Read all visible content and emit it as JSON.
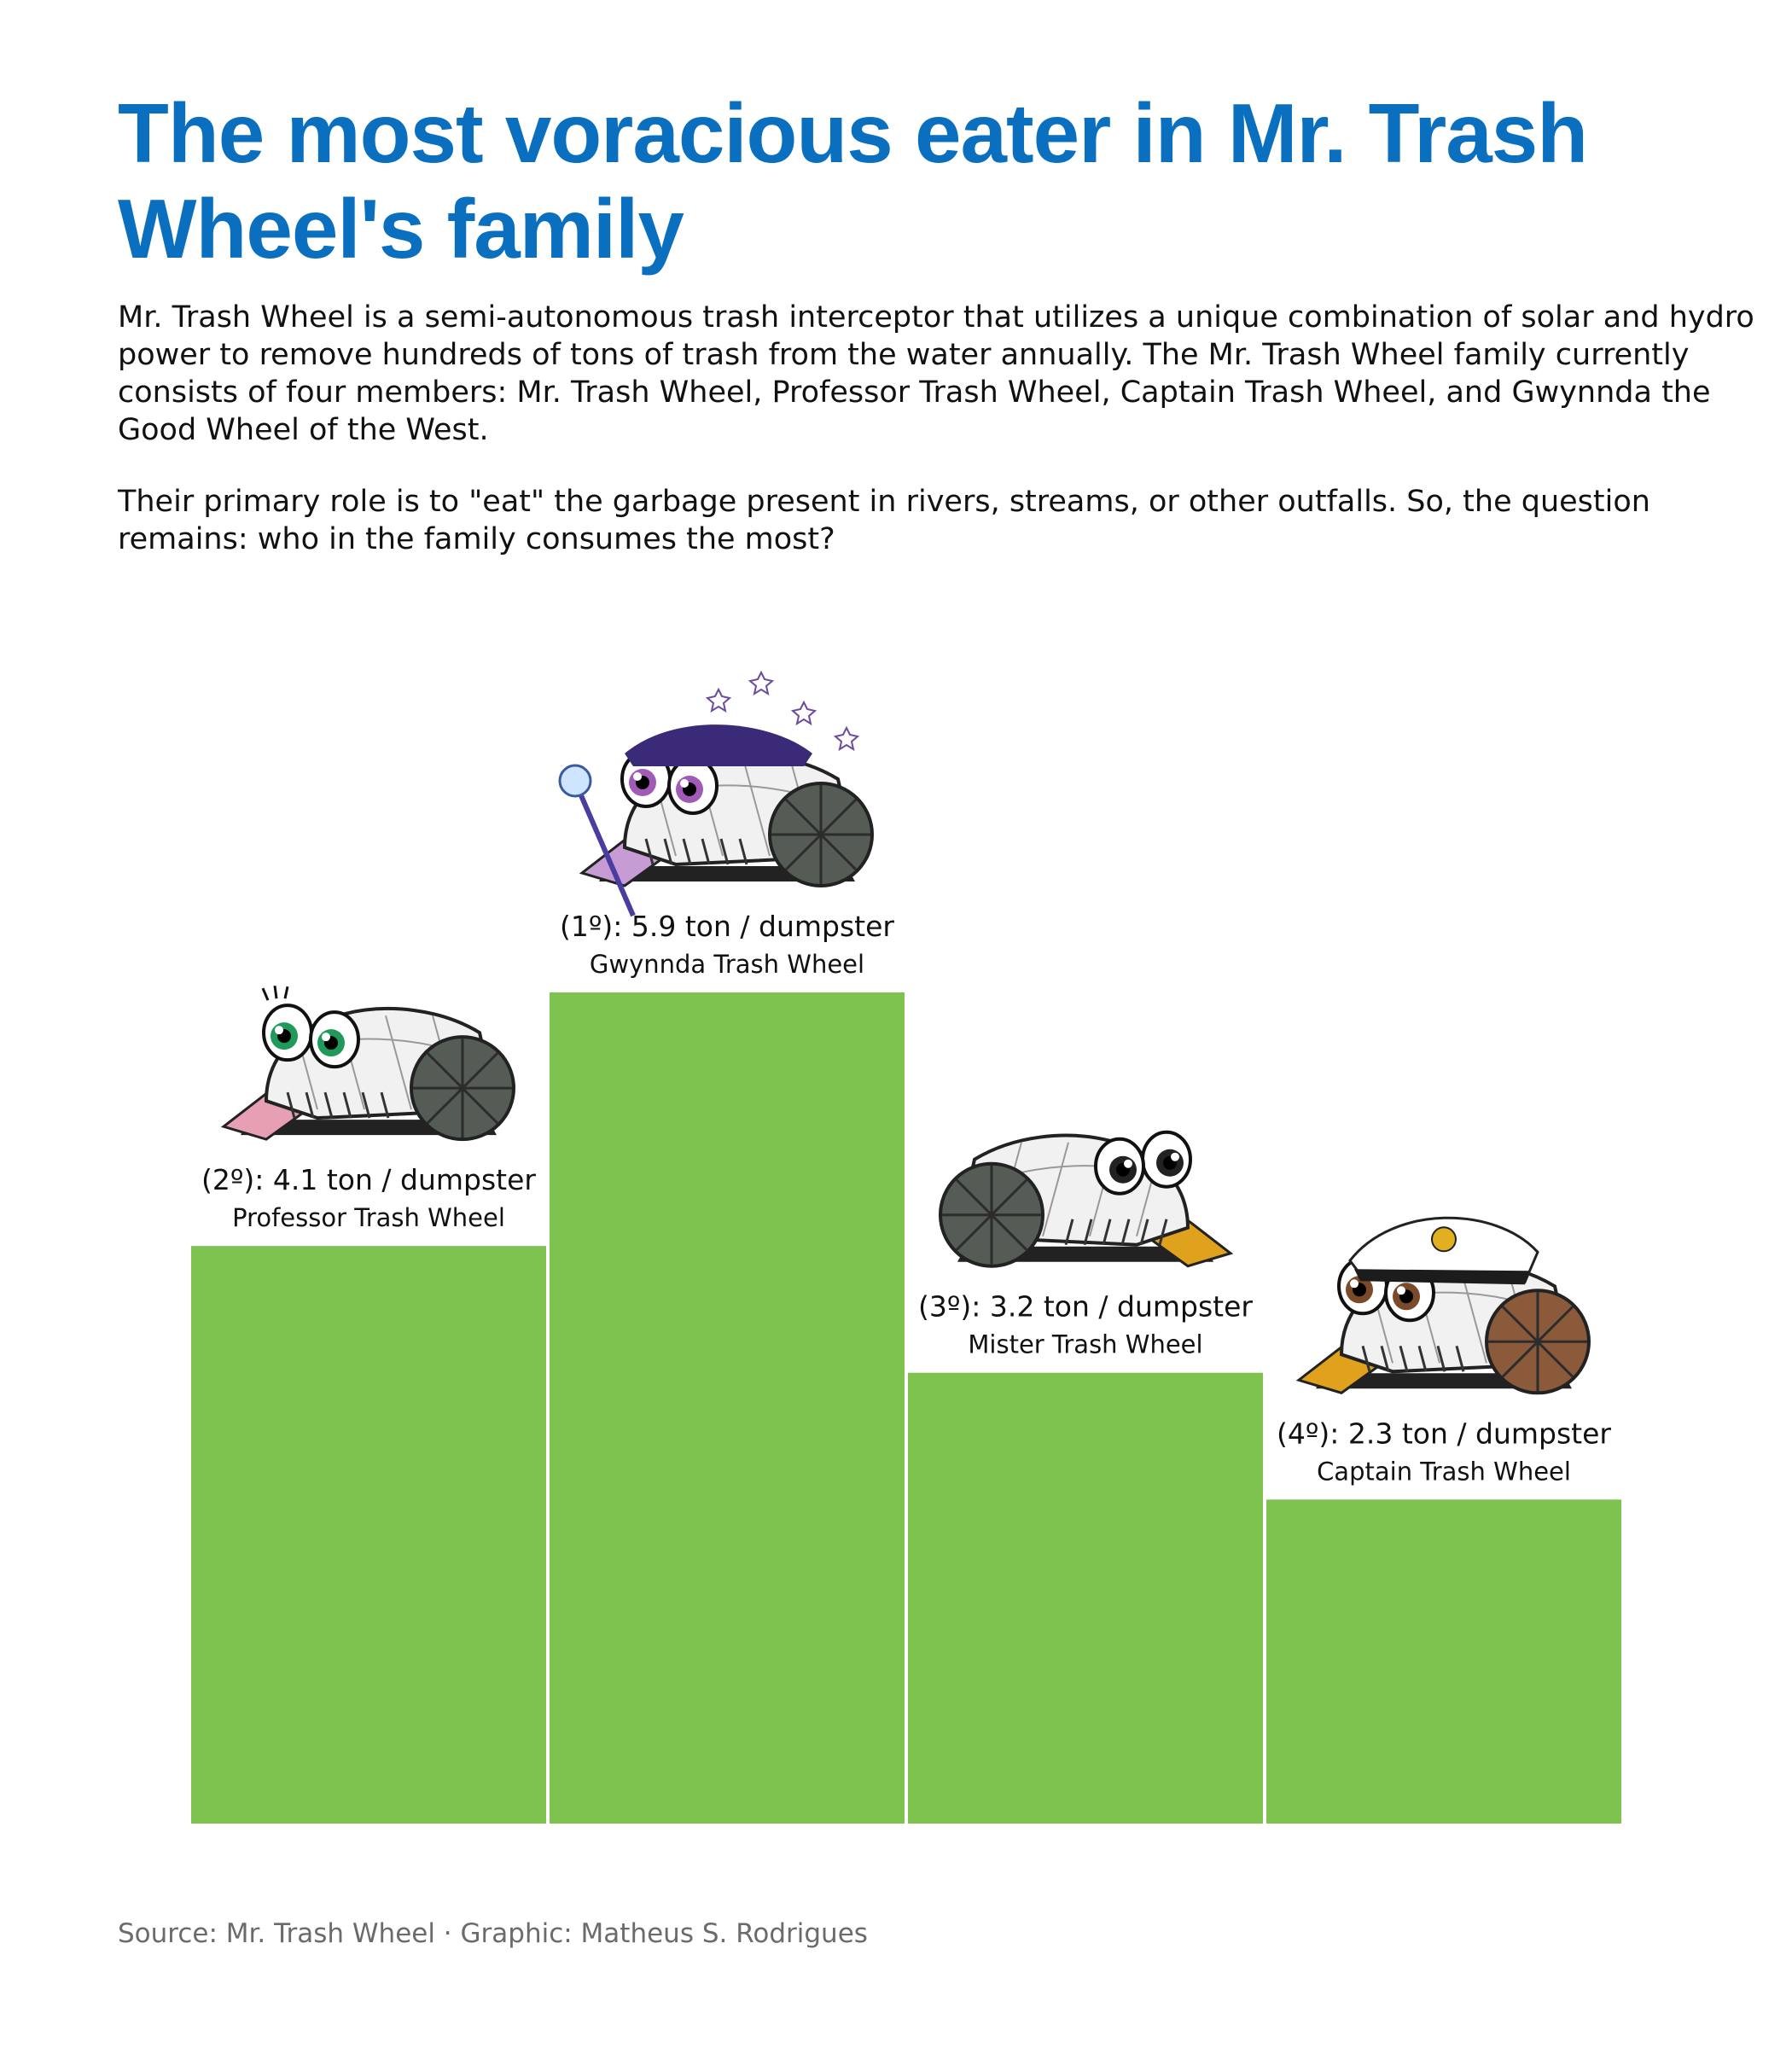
{
  "title": "The most voracious eater in Mr. Trash Wheel's family",
  "subtitle_paragraphs": [
    "Mr. Trash Wheel is a semi-autonomous trash interceptor that utilizes a unique combination of solar and hydro power to remove hundreds of tons of trash from the water annually. The Mr. Trash Wheel family currently consists of four members: Mr. Trash Wheel, Professor Trash Wheel, Captain Trash Wheel, and Gwynnda the Good Wheel of the West.",
    "Their primary role is to \"eat\" the garbage present in rivers, streams, or other outfalls. So, the question remains: who in the family consumes the most?"
  ],
  "caption": "Source: Mr. Trash Wheel · Graphic: Matheus S. Rodrigues",
  "colors": {
    "bar": "#7ec24f",
    "title": "#0a6fbf"
  },
  "chart_data": {
    "type": "bar",
    "categories": [
      "Professor Trash Wheel",
      "Gwynnda Trash Wheel",
      "Mister Trash Wheel",
      "Captain Trash Wheel"
    ],
    "values": [
      4.1,
      5.9,
      3.2,
      2.3
    ],
    "value_labels": [
      "(2º): 4.1 ton / dumpster",
      "(1º): 5.9 ton / dumpster",
      "(3º): 3.2 ton / dumpster",
      "(4º): 2.3 ton / dumpster"
    ],
    "icons": [
      "professor-trash-wheel-icon",
      "gwynnda-trash-wheel-icon",
      "mister-trash-wheel-icon",
      "captain-trash-wheel-icon"
    ],
    "ylim": [
      0,
      5.9
    ],
    "grid": false,
    "legend": "none"
  }
}
